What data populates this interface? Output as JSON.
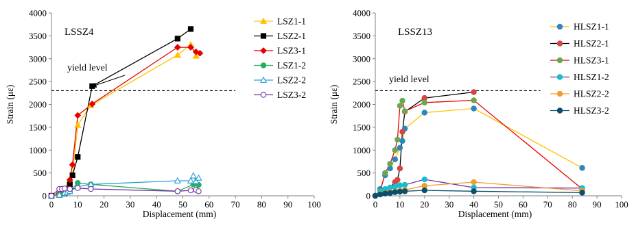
{
  "chart_data": [
    {
      "type": "line",
      "title": "LSSZ4",
      "xlabel": "Displacement (mm)",
      "ylabel": "Strain (με)",
      "xlim": [
        0,
        100
      ],
      "ylim": [
        0,
        4000
      ],
      "xticks": [
        "0",
        "10",
        "20",
        "30",
        "40",
        "50",
        "60",
        "70",
        "80",
        "90",
        "100"
      ],
      "yticks": [
        "0",
        "500",
        "1000",
        "1500",
        "2000",
        "2500",
        "3000",
        "3500",
        "4000"
      ],
      "grid": false,
      "legend_position": "right",
      "yield": {
        "value": 2300,
        "x_range": [
          0,
          70
        ],
        "label": "yield level",
        "arrow_to": [
          15,
          2300
        ]
      },
      "series": [
        {
          "name": "LSZ1-1",
          "color": "#FFC000",
          "marker": "triangle",
          "filled": true,
          "x": [
            0,
            3,
            5,
            6,
            7,
            8,
            10,
            15,
            48,
            53,
            55
          ],
          "y": [
            0,
            50,
            100,
            200,
            350,
            450,
            1550,
            1980,
            3080,
            3310,
            3060
          ]
        },
        {
          "name": "LSZ2-1",
          "color": "#000000",
          "marker": "square",
          "filled": true,
          "x": [
            0,
            3,
            5,
            6,
            7,
            8,
            10,
            15.5,
            48,
            53
          ],
          "y": [
            0,
            20,
            50,
            100,
            250,
            450,
            850,
            2400,
            3440,
            3650
          ]
        },
        {
          "name": "LSZ3-1",
          "color": "#E60000",
          "marker": "diamond",
          "filled": true,
          "x": [
            0,
            3,
            5,
            6,
            7,
            8,
            10,
            15.5,
            48,
            53,
            55,
            56.5
          ],
          "y": [
            0,
            50,
            100,
            150,
            350,
            680,
            1760,
            2010,
            3250,
            3250,
            3150,
            3120
          ]
        },
        {
          "name": "LSZ1-2",
          "color": "#27AE60",
          "marker": "circle",
          "filled": true,
          "x": [
            0,
            3,
            5,
            7,
            10,
            15,
            48,
            54,
            56
          ],
          "y": [
            0,
            20,
            50,
            100,
            280,
            250,
            100,
            250,
            240
          ]
        },
        {
          "name": "LSZ2-2",
          "color": "#2E9FD9",
          "marker": "triangle",
          "filled": false,
          "x": [
            0,
            3,
            5,
            6,
            7,
            10,
            15,
            48,
            53,
            54,
            55,
            56
          ],
          "y": [
            0,
            20,
            60,
            80,
            100,
            200,
            250,
            330,
            330,
            440,
            320,
            390
          ]
        },
        {
          "name": "LSZ3-2",
          "color": "#7030A0",
          "marker": "circle",
          "filled": false,
          "x": [
            0,
            3,
            4,
            5,
            7,
            10,
            15,
            48,
            53,
            55,
            56
          ],
          "y": [
            0,
            150,
            150,
            160,
            150,
            170,
            150,
            100,
            120,
            130,
            100
          ]
        }
      ]
    },
    {
      "type": "line",
      "title": "LSSZ13",
      "xlabel": "Displacement (mm)",
      "ylabel": "Strain (με)",
      "xlim": [
        0,
        100
      ],
      "ylim": [
        0,
        4000
      ],
      "xticks": [
        "0",
        "10",
        "20",
        "30",
        "40",
        "50",
        "60",
        "70",
        "80",
        "90",
        "100"
      ],
      "yticks": [
        "0",
        "500",
        "1000",
        "1500",
        "2000",
        "2500",
        "3000",
        "3500",
        "4000"
      ],
      "grid": false,
      "legend_position": "right",
      "yield": {
        "value": 2300,
        "x_range": [
          0,
          67
        ],
        "label": "yield level"
      },
      "series": [
        {
          "name": "HLSZ1-1",
          "color": "#2E86C1",
          "line_color": "#FFC000",
          "marker": "circle",
          "filled": true,
          "x": [
            0,
            2,
            4,
            6,
            8,
            10,
            11,
            12,
            20,
            40,
            84
          ],
          "y": [
            0,
            150,
            450,
            600,
            800,
            1050,
            1200,
            1470,
            1820,
            1910,
            610
          ]
        },
        {
          "name": "HLSZ2-1",
          "color": "#D64545",
          "line_color": "#000000",
          "marker": "circle",
          "filled": true,
          "x": [
            0,
            2,
            4,
            6,
            8,
            9,
            10,
            11,
            12,
            20,
            40
          ],
          "y": [
            0,
            50,
            100,
            180,
            300,
            350,
            600,
            1400,
            1840,
            2140,
            2270
          ]
        },
        {
          "name": "HLSZ3-1",
          "color": "#6AA84F",
          "line_color": "#E60000",
          "marker": "circle",
          "filled": true,
          "x": [
            0,
            2,
            4,
            6,
            8,
            9,
            10,
            11,
            12,
            20,
            40,
            84
          ],
          "y": [
            0,
            100,
            500,
            700,
            1000,
            1230,
            1970,
            2080,
            1850,
            2040,
            2090,
            150
          ]
        },
        {
          "name": "HLSZ1-2",
          "color": "#17BECF",
          "line_color": "#7030A0",
          "marker": "circle",
          "filled": true,
          "x": [
            0,
            2,
            4,
            6,
            8,
            10,
            12,
            20,
            40,
            84
          ],
          "y": [
            0,
            80,
            150,
            180,
            200,
            230,
            240,
            360,
            180,
            170
          ]
        },
        {
          "name": "HLSZ2-2",
          "color": "#F39C32",
          "marker": "circle",
          "filled": true,
          "x": [
            0,
            2,
            4,
            6,
            8,
            10,
            12,
            20,
            40,
            84
          ],
          "y": [
            0,
            40,
            60,
            80,
            90,
            110,
            130,
            220,
            300,
            110
          ]
        },
        {
          "name": "HLSZ3-2",
          "color": "#0B4F6C",
          "marker": "circle",
          "filled": true,
          "x": [
            0,
            2,
            4,
            6,
            8,
            10,
            12,
            20,
            40,
            84
          ],
          "y": [
            0,
            30,
            50,
            60,
            80,
            90,
            100,
            120,
            100,
            70
          ]
        }
      ]
    }
  ]
}
